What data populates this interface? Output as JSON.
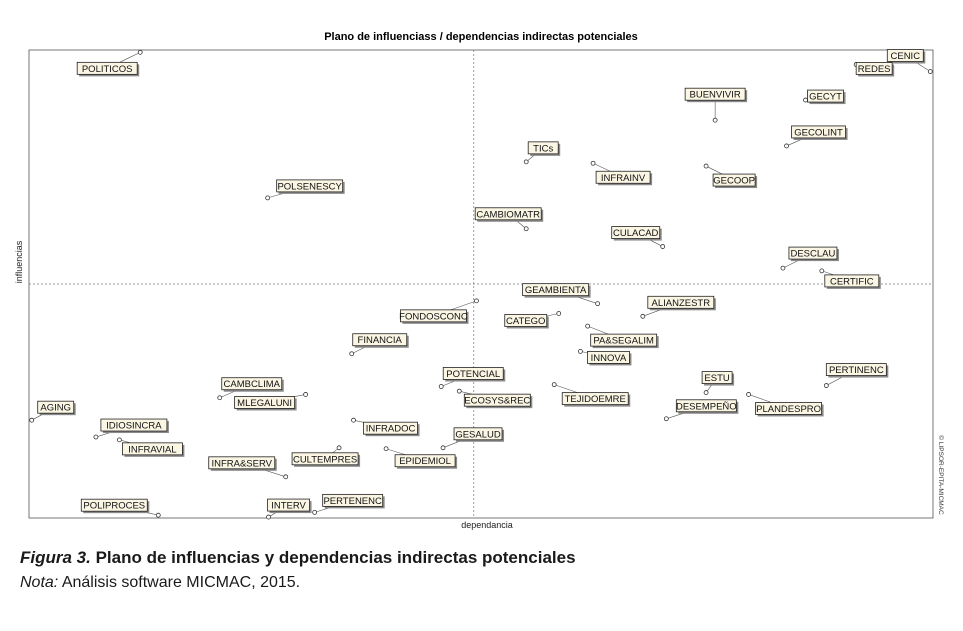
{
  "chart_data": {
    "type": "scatter",
    "title": "Plano de influenciass / dependencias indirectas potenciales",
    "xlabel": "dependancia",
    "ylabel": "influencias",
    "watermark": "© LIPSOR-EPITA-MICMAC",
    "xlim": [
      0,
      100
    ],
    "ylim": [
      0,
      100
    ],
    "grid": false,
    "quadrant_dividers": {
      "x": 49.2,
      "y": 50.0
    },
    "points": [
      {
        "label": "POLITICOS",
        "x": 12.3,
        "y": 99.5
      },
      {
        "label": "CENIC",
        "x": 99.7,
        "y": 95.4
      },
      {
        "label": "REDES",
        "x": 91.5,
        "y": 96.9
      },
      {
        "label": "GECYT",
        "x": 85.9,
        "y": 89.3
      },
      {
        "label": "BUENVIVIR",
        "x": 75.9,
        "y": 85.0
      },
      {
        "label": "GECOLINT",
        "x": 83.8,
        "y": 79.5
      },
      {
        "label": "TICs",
        "x": 55.0,
        "y": 76.1
      },
      {
        "label": "INFRAINV",
        "x": 62.4,
        "y": 75.8
      },
      {
        "label": "GECOOP",
        "x": 74.9,
        "y": 75.2
      },
      {
        "label": "POLSENESCY",
        "x": 26.4,
        "y": 68.4
      },
      {
        "label": "CAMBIOMATR",
        "x": 55.0,
        "y": 61.8
      },
      {
        "label": "CULACAD",
        "x": 70.1,
        "y": 58.0
      },
      {
        "label": "DESCLAU",
        "x": 83.4,
        "y": 53.4
      },
      {
        "label": "CERTIFIC",
        "x": 87.7,
        "y": 52.8
      },
      {
        "label": "GEAMBIENTA",
        "x": 62.9,
        "y": 45.8
      },
      {
        "label": "ALIANZESTR",
        "x": 67.9,
        "y": 43.1
      },
      {
        "label": "FONDOSCONC",
        "x": 49.5,
        "y": 46.4
      },
      {
        "label": "CATEGO",
        "x": 58.6,
        "y": 43.7
      },
      {
        "label": "PA&SEGALIM",
        "x": 61.8,
        "y": 41.0
      },
      {
        "label": "INNOVA",
        "x": 61.0,
        "y": 35.6
      },
      {
        "label": "FINANCIA",
        "x": 35.7,
        "y": 35.1
      },
      {
        "label": "PERTINENC",
        "x": 88.2,
        "y": 28.3
      },
      {
        "label": "POTENCIAL",
        "x": 45.6,
        "y": 28.1
      },
      {
        "label": "ESTU",
        "x": 74.9,
        "y": 26.8
      },
      {
        "label": "TEJIDOEMRE",
        "x": 58.1,
        "y": 28.5
      },
      {
        "label": "CAMBCLIMA",
        "x": 21.1,
        "y": 25.7
      },
      {
        "label": "MLEGALUNI",
        "x": 30.6,
        "y": 26.4
      },
      {
        "label": "ECOSYS&REC",
        "x": 47.6,
        "y": 27.1
      },
      {
        "label": "PLANDESPRO",
        "x": 79.6,
        "y": 26.4
      },
      {
        "label": "DESEMPEÑO",
        "x": 70.5,
        "y": 21.2
      },
      {
        "label": "AGING",
        "x": 0.3,
        "y": 20.9
      },
      {
        "label": "INFRADOC",
        "x": 35.9,
        "y": 20.9
      },
      {
        "label": "IDIOSINCRA",
        "x": 7.4,
        "y": 17.3
      },
      {
        "label": "GESALUD",
        "x": 45.8,
        "y": 15.0
      },
      {
        "label": "INFRAVIAL",
        "x": 10.0,
        "y": 16.7
      },
      {
        "label": "CULTEMPRES",
        "x": 34.3,
        "y": 15.0
      },
      {
        "label": "EPIDEMIOL",
        "x": 39.5,
        "y": 14.8
      },
      {
        "label": "INFRA&SERV",
        "x": 28.4,
        "y": 8.8
      },
      {
        "label": "POLIPROCES",
        "x": 14.3,
        "y": 0.6
      },
      {
        "label": "INTERV",
        "x": 26.5,
        "y": 0.2
      },
      {
        "label": "PERTENENC",
        "x": 31.6,
        "y": 1.2
      }
    ]
  },
  "caption": {
    "figure_label": "Figura 3.",
    "figure_title": "Plano de influencias y dependencias indirectas potenciales",
    "note_label": "Nota:",
    "note_text": "Análisis software MICMAC, 2015."
  }
}
